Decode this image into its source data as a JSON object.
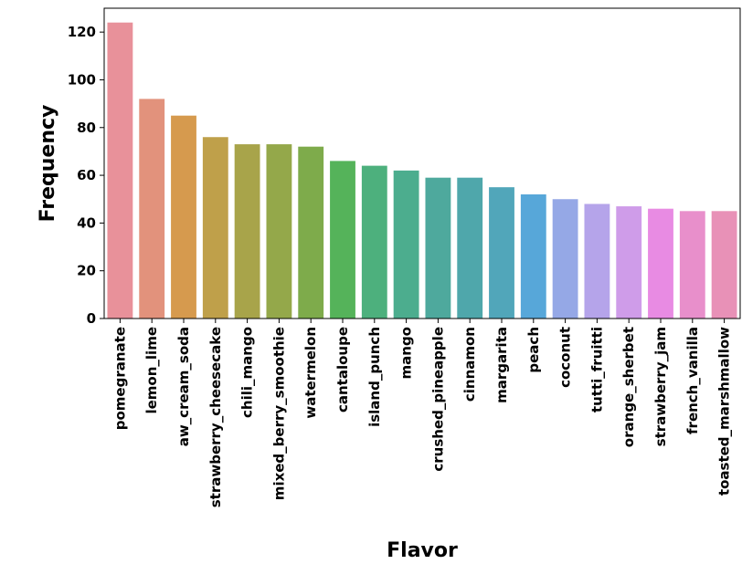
{
  "chart_data": {
    "type": "bar",
    "xlabel": "Flavor",
    "ylabel": "Frequency",
    "ylim": [
      0,
      130
    ],
    "yticks": [
      0,
      20,
      40,
      60,
      80,
      100,
      120
    ],
    "categories": [
      "pomegranate",
      "lemon_lime",
      "aw_cream_soda",
      "strawberry_cheesecake",
      "chili_mango",
      "mixed_berry_smoothie",
      "watermelon",
      "cantaloupe",
      "island_punch",
      "mango",
      "crushed_pineapple",
      "cinnamon",
      "margarita",
      "peach",
      "coconut",
      "tutti_fruitti",
      "orange_sherbet",
      "strawberry_jam",
      "french_vanilla",
      "toasted_marshmallow"
    ],
    "values": [
      124,
      92,
      85,
      76,
      73,
      73,
      72,
      66,
      64,
      62,
      59,
      59,
      55,
      52,
      50,
      48,
      47,
      46,
      45,
      45
    ],
    "colors": [
      "#e8919a",
      "#e2927c",
      "#d69a4e",
      "#bfa04a",
      "#a8a44a",
      "#94a84a",
      "#7eab4b",
      "#55b35a",
      "#4db07d",
      "#4cad8e",
      "#4ea99d",
      "#4fa7ab",
      "#51a6ba",
      "#57a7d9",
      "#95a8e6",
      "#b5a4ea",
      "#cf9ce9",
      "#e88be3",
      "#e88fcb",
      "#e891b7"
    ]
  }
}
